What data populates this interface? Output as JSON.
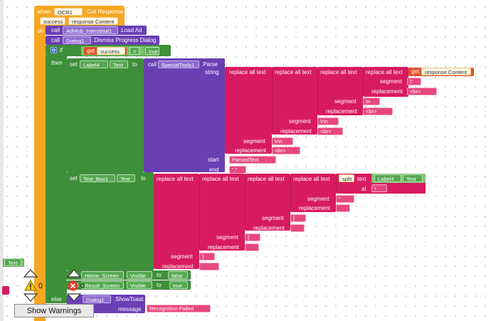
{
  "event": {
    "when": "when",
    "component": "OCR1",
    "event_name": ".Got Response",
    "param1": "success",
    "param2": "response Content",
    "do": "do"
  },
  "calls": {
    "call": "call",
    "admob": "AdMob_Interstitial1",
    "admob_method": ".Load Ad",
    "dialog": "Dialog1",
    "dialog_method": ".Dismiss Progress Dialog",
    "toast_component": "Dialog1",
    "toast_method": ".ShowToast",
    "message_label": "message",
    "message_value": "Recognition Failed"
  },
  "if_block": {
    "if": "if",
    "then": "then",
    "else": "else",
    "get": "get",
    "get_var": "success",
    "eq": "=",
    "true_val": "true"
  },
  "set1": {
    "set": "set",
    "component": "Label4",
    "property": "Text",
    "to": "to",
    "call": "call",
    "parser": "SpecialTools1",
    "parser_method": ".Parse",
    "string_label": "string",
    "start_label": "start",
    "end_label": "end",
    "start_value": "ParsedText",
    "end_value": "\",\""
  },
  "replace": {
    "label": "replace all text",
    "segment": "segment",
    "replacement": "replacement",
    "get": "get",
    "get_var": "response Content",
    "seg1": "\\\"",
    "rep1": "<br>",
    "seg2": "\\n",
    "rep2": "<br>",
    "seg3": "\\r\\n",
    "rep3": "<br>",
    "seg4": "\\r\\n",
    "rep4": "<br>"
  },
  "set2": {
    "set": "set",
    "component": "Text_Box1",
    "property": "Text",
    "to": "to",
    "split": "split",
    "text_label": "text",
    "at_label": "at",
    "split_component": "Label4",
    "split_property": "Text",
    "at_value": "\\",
    "seg_a": "\"",
    "rep_a": "",
    "seg_b": "[",
    "rep_b": "",
    "seg_c": "{",
    "rep_c": "",
    "seg_d": "}",
    "rep_d": ""
  },
  "visibility": {
    "set": "set",
    "home": "Home_Screen",
    "result": "Result_Screen",
    "visible": "Visible",
    "to": "to",
    "false_val": "false",
    "true_val": "true"
  },
  "workspace": {
    "text_block": "Text",
    "warning_count": "0",
    "error_count": "0",
    "show_warnings": "Show Warnings"
  },
  "colors": {
    "event": "#f6a623",
    "procedure": "#6a3fb4",
    "component_set": "#3e8f3a",
    "text": "#d81b60",
    "logic": "#7cc46b",
    "variable": "#e0522a"
  }
}
